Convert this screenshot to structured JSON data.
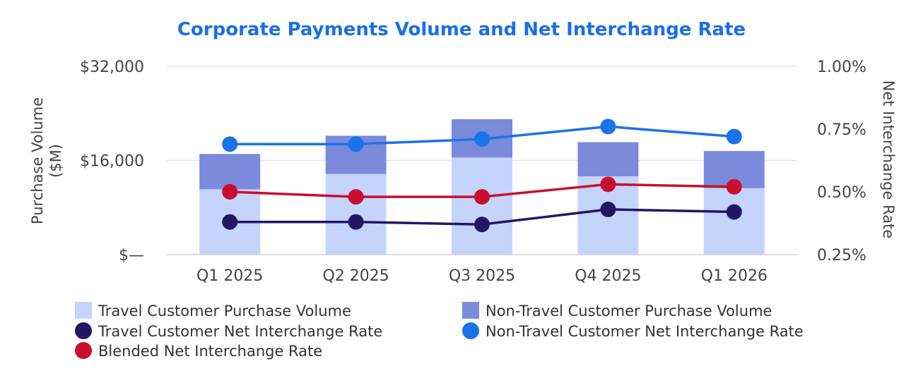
{
  "chart_data": {
    "type": "bar",
    "title": "Corporate Payments Volume and Net Interchange Rate",
    "categories": [
      "Q1 2025",
      "Q2 2025",
      "Q3 2025",
      "Q4 2025",
      "Q1 2026"
    ],
    "left_axis": {
      "title_lines": [
        "Purchase Volume",
        "($M)"
      ],
      "ticks": [
        {
          "value": 0,
          "label": "$—"
        },
        {
          "value": 16000,
          "label": "$16,000"
        },
        {
          "value": 32000,
          "label": "$32,000"
        }
      ],
      "range": [
        0,
        32000
      ]
    },
    "right_axis": {
      "title": "Net Interchange Rate",
      "ticks": [
        {
          "value": 0.25,
          "label": "0.25%"
        },
        {
          "value": 0.5,
          "label": "0.50%"
        },
        {
          "value": 0.75,
          "label": "0.75%"
        },
        {
          "value": 1.0,
          "label": "1.00%"
        }
      ],
      "range": [
        0.25,
        1.0
      ]
    },
    "grid": true,
    "legend_position": "bottom",
    "bar_series": [
      {
        "name": "Travel Customer Purchase Volume",
        "color": "#c5d4fc",
        "values": [
          11100,
          13700,
          16500,
          13300,
          11300
        ]
      },
      {
        "name": "Non-Travel Customer Purchase Volume",
        "color": "#7b8adb",
        "values": [
          6000,
          6500,
          6500,
          5800,
          6300
        ]
      }
    ],
    "line_series": [
      {
        "name": "Travel Customer Net Interchange Rate",
        "color": "#231764",
        "values": [
          0.38,
          0.38,
          0.37,
          0.43,
          0.42
        ]
      },
      {
        "name": "Non-Travel Customer Net Interchange Rate",
        "color": "#1a73e8",
        "values": [
          0.69,
          0.69,
          0.71,
          0.76,
          0.72
        ]
      },
      {
        "name": "Blended Net Interchange Rate",
        "color": "#c8102e",
        "values": [
          0.5,
          0.48,
          0.48,
          0.53,
          0.52
        ]
      }
    ],
    "title_color": "#1a6ee8"
  }
}
